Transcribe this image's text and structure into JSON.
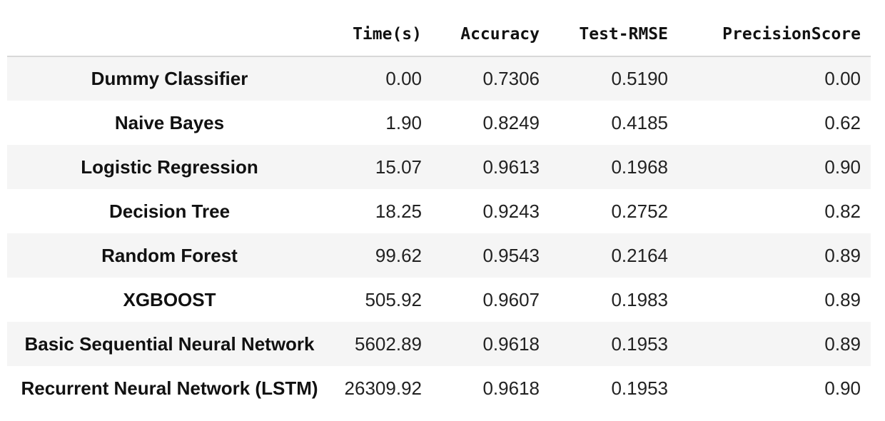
{
  "table": {
    "columns": [
      "",
      "Time(s)",
      "Accuracy",
      "Test-RMSE",
      "PrecisionScore"
    ],
    "rows": [
      {
        "model": "Dummy Classifier",
        "time": "0.00",
        "accuracy": "0.7306",
        "rmse": "0.5190",
        "precision": "0.00"
      },
      {
        "model": "Naive Bayes",
        "time": "1.90",
        "accuracy": "0.8249",
        "rmse": "0.4185",
        "precision": "0.62"
      },
      {
        "model": "Logistic Regression",
        "time": "15.07",
        "accuracy": "0.9613",
        "rmse": "0.1968",
        "precision": "0.90"
      },
      {
        "model": "Decision Tree",
        "time": "18.25",
        "accuracy": "0.9243",
        "rmse": "0.2752",
        "precision": "0.82"
      },
      {
        "model": "Random Forest",
        "time": "99.62",
        "accuracy": "0.9543",
        "rmse": "0.2164",
        "precision": "0.89"
      },
      {
        "model": "XGBOOST",
        "time": "505.92",
        "accuracy": "0.9607",
        "rmse": "0.1983",
        "precision": "0.89"
      },
      {
        "model": "Basic Sequential Neural Network",
        "time": "5602.89",
        "accuracy": "0.9618",
        "rmse": "0.1953",
        "precision": "0.89"
      },
      {
        "model": "Recurrent Neural Network (LSTM)",
        "time": "26309.92",
        "accuracy": "0.9618",
        "rmse": "0.1953",
        "precision": "0.90"
      }
    ]
  }
}
